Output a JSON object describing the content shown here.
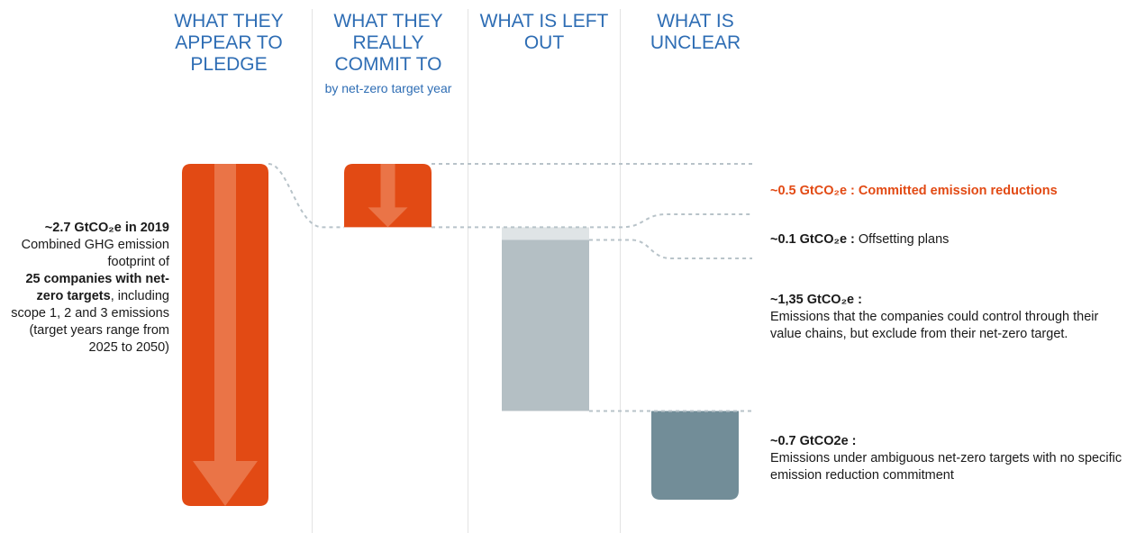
{
  "headers": {
    "pledge": "WHAT THEY APPEAR TO PLEDGE",
    "commit": "WHAT THEY REALLY COMMIT TO",
    "commit_sub": "by net-zero target year",
    "left_out": "WHAT IS LEFT OUT",
    "unclear": "WHAT IS UNCLEAR"
  },
  "left_note": {
    "value": "~2.7 GtCO₂e in 2019",
    "line1": "Combined GHG emission footprint of",
    "bold": "25 companies with net-zero targets",
    "line2": ", including scope 1, 2 and 3 emissions (target years range from 2025 to 2050)"
  },
  "annotations": {
    "committed_value": "~0.5 GtCO₂e :",
    "committed_label": "Committed emission reductions",
    "offset_value": "~0.1 GtCO₂e :",
    "offset_label": "Offsetting plans",
    "leftout_value": "~1,35 GtCO₂e :",
    "leftout_label": "Emissions that the companies could control through their value chains, but exclude from their net-zero target.",
    "unclear_value": "~0.7 GtCO2e :",
    "unclear_label": "Emissions under ambiguous net-zero targets with no specific emission reduction commitment"
  },
  "colors": {
    "accent": "#e24a14",
    "arrow": "#ea7447",
    "left_out": "#b4bfc4",
    "offset": "#dfe4e6",
    "unclear": "#728d98",
    "header": "#2e6db4"
  },
  "chart_data": {
    "type": "waterfall",
    "unit": "GtCO2e",
    "total": 2.7,
    "segments": [
      {
        "name": "Committed emission reductions",
        "value": 0.5
      },
      {
        "name": "Offsetting plans",
        "value": 0.1
      },
      {
        "name": "Emissions that the companies could control through their value chains, but exclude from their net-zero target",
        "value": 1.35
      },
      {
        "name": "Emissions under ambiguous net-zero targets with no specific emission reduction commitment",
        "value": 0.7
      }
    ]
  }
}
